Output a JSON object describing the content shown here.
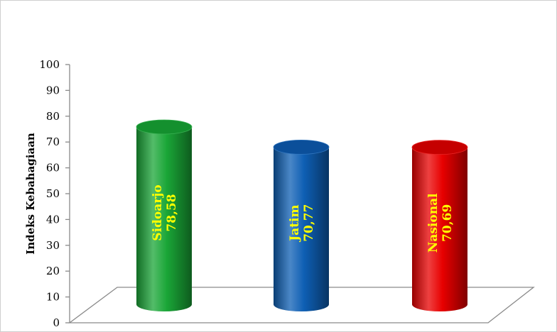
{
  "chart_data": {
    "type": "bar",
    "style": "3d-cylinder",
    "categories": [
      "Sidoarjo",
      "Jatim",
      "Nasional"
    ],
    "values": [
      78.58,
      70.77,
      70.69
    ],
    "value_labels": [
      "78,58",
      "70,77",
      "70,69"
    ],
    "ylabel": "Indeks Kebahagiaan",
    "ylim": [
      0,
      100
    ],
    "yticks": [
      0,
      10,
      20,
      30,
      40,
      50,
      60,
      70,
      80,
      90,
      100
    ],
    "grid": false,
    "legend": "none",
    "colors": {
      "bars": [
        "#1aa637",
        "#0e5fb4",
        "#e80000"
      ],
      "bar_tops": [
        "#14902e",
        "#0b4f9a",
        "#c50000"
      ],
      "labels": [
        "#ffff00",
        "#ffff00",
        "#ffff00"
      ],
      "floor": "#8a8a8a",
      "axis": "#8a8a8a"
    }
  }
}
